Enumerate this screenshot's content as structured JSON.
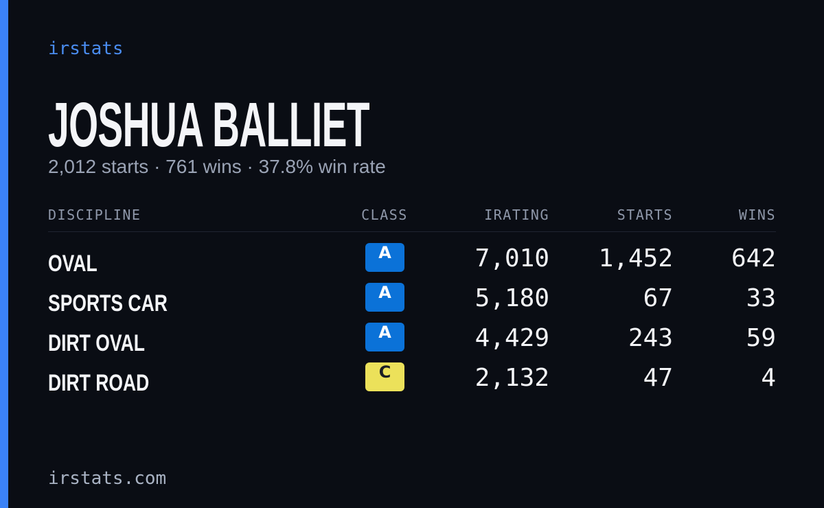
{
  "brand": "irstats",
  "driver": {
    "name": "JOSHUA BALLIET",
    "summary": "2,012 starts · 761 wins · 37.8% win rate"
  },
  "table": {
    "headers": [
      "DISCIPLINE",
      "CLASS",
      "IRATING",
      "STARTS",
      "WINS"
    ],
    "rows": [
      {
        "discipline": "OVAL",
        "class": "A",
        "class_color": "#0b72d8",
        "irating": "7,010",
        "starts": "1,452",
        "wins": "642"
      },
      {
        "discipline": "SPORTS CAR",
        "class": "A",
        "class_color": "#0b72d8",
        "irating": "5,180",
        "starts": "67",
        "wins": "33"
      },
      {
        "discipline": "DIRT OVAL",
        "class": "A",
        "class_color": "#0b72d8",
        "irating": "4,429",
        "starts": "243",
        "wins": "59"
      },
      {
        "discipline": "DIRT ROAD",
        "class": "C",
        "class_color": "#ece15a",
        "irating": "2,132",
        "starts": "47",
        "wins": "4"
      }
    ]
  },
  "footer": "irstats.com"
}
